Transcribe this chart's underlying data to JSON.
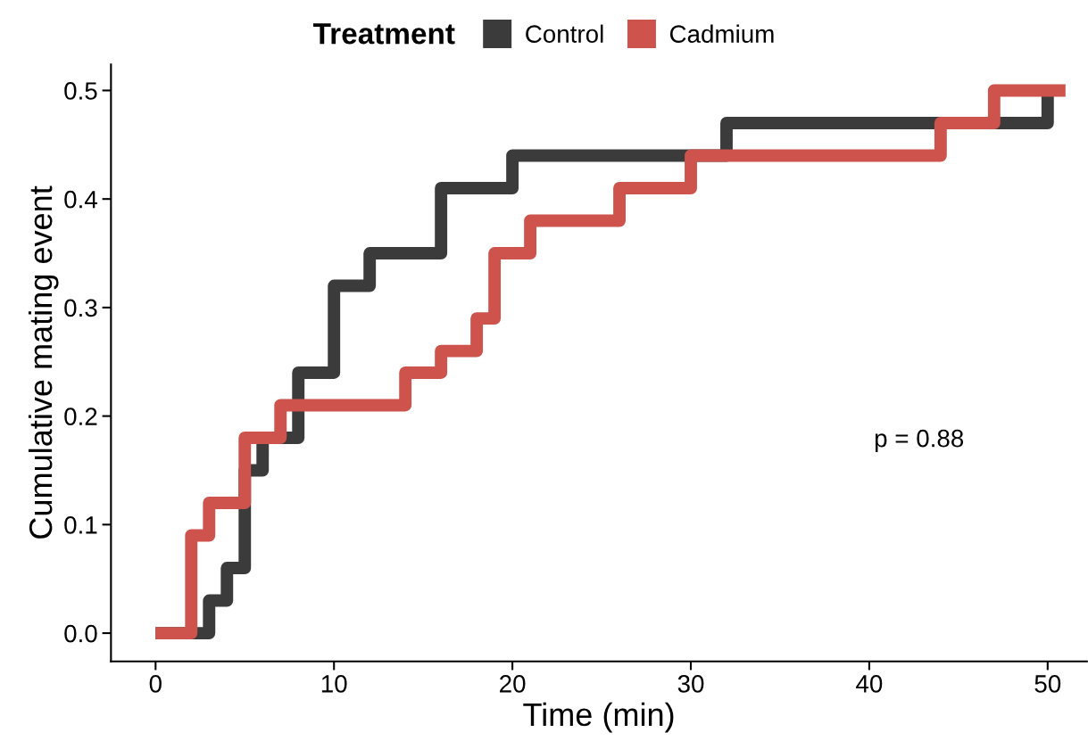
{
  "chart_data": {
    "type": "step",
    "xlabel": "Time (min)",
    "ylabel": "Cumulative mating event",
    "legend_title": "Treatment",
    "legend": "top",
    "grid": false,
    "xlim": [
      -2.5,
      52.2
    ],
    "ylim": [
      -0.026,
      0.524
    ],
    "xticks": [
      0,
      10,
      20,
      30,
      40,
      50
    ],
    "yticks": [
      {
        "value": 0,
        "label": "0.0"
      },
      0.1,
      0.2,
      0.3,
      0.4,
      0.5
    ],
    "annotations": [
      "p = 0.88"
    ],
    "series": [
      {
        "name": "Control",
        "color": "#3b3b3b",
        "x": [
          0,
          3,
          4,
          5,
          6,
          8,
          10,
          12,
          16,
          20,
          32,
          50
        ],
        "values": [
          0,
          0.03,
          0.06,
          0.15,
          0.18,
          0.24,
          0.32,
          0.35,
          0.41,
          0.44,
          0.47,
          0.5
        ]
      },
      {
        "name": "Cadmium",
        "color": "#cd534c",
        "x": [
          0,
          2,
          3,
          5,
          7,
          14,
          16,
          18,
          19,
          21,
          26,
          30,
          44,
          47,
          51
        ],
        "values": [
          0,
          0.09,
          0.12,
          0.18,
          0.21,
          0.24,
          0.26,
          0.29,
          0.35,
          0.38,
          0.41,
          0.44,
          0.47,
          0.5,
          0.5
        ]
      }
    ]
  }
}
